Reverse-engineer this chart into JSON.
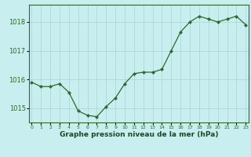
{
  "x": [
    0,
    1,
    2,
    3,
    4,
    5,
    6,
    7,
    8,
    9,
    10,
    11,
    12,
    13,
    14,
    15,
    16,
    17,
    18,
    19,
    20,
    21,
    22,
    23
  ],
  "y": [
    1015.9,
    1015.75,
    1015.75,
    1015.85,
    1015.55,
    1014.9,
    1014.75,
    1014.7,
    1015.05,
    1015.35,
    1015.85,
    1016.2,
    1016.25,
    1016.25,
    1016.35,
    1017.0,
    1017.65,
    1018.0,
    1018.2,
    1018.1,
    1018.0,
    1018.1,
    1018.2,
    1017.9
  ],
  "line_color": "#2d6a2d",
  "marker_color": "#2d6a2d",
  "bg_color": "#c8eef0",
  "grid_color": "#aad4d4",
  "xlabel": "Graphe pression niveau de la mer (hPa)",
  "xlabel_color": "#1a4a1a",
  "tick_label_color": "#2d6a2d",
  "ylim": [
    1014.5,
    1018.6
  ],
  "yticks": [
    1015,
    1016,
    1017,
    1018
  ],
  "xticks": [
    0,
    1,
    2,
    3,
    4,
    5,
    6,
    7,
    8,
    9,
    10,
    11,
    12,
    13,
    14,
    15,
    16,
    17,
    18,
    19,
    20,
    21,
    22,
    23
  ],
  "xtick_labels": [
    "0",
    "1",
    "2",
    "3",
    "4",
    "5",
    "6",
    "7",
    "8",
    "9",
    "10",
    "11",
    "12",
    "13",
    "14",
    "15",
    "16",
    "17",
    "18",
    "19",
    "20",
    "21",
    "22",
    "23"
  ],
  "spine_color": "#2d6a2d",
  "xlim": [
    -0.3,
    23.3
  ]
}
